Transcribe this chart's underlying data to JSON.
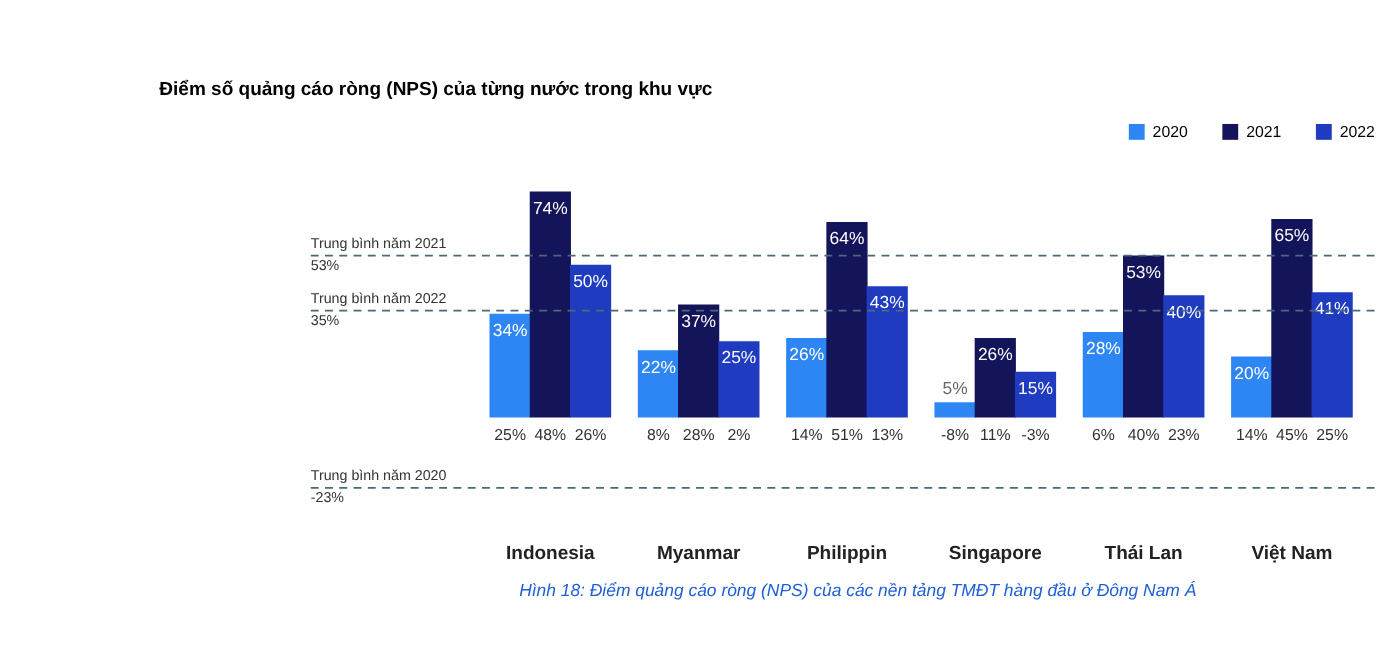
{
  "chart_data": {
    "type": "bar",
    "title": "Điểm số quảng cáo ròng (NPS) của từng nước trong khu vực",
    "categories": [
      "Indonesia",
      "Myanmar",
      "Philippin",
      "Singapore",
      "Thái Lan",
      "Việt Nam"
    ],
    "series": [
      {
        "name": "2020",
        "color": "#2e86f5",
        "values": [
          34,
          22,
          26,
          5,
          28,
          20
        ],
        "value_labels": [
          "34%",
          "22%",
          "26%",
          "5%",
          "28%",
          "20%"
        ]
      },
      {
        "name": "2021",
        "color": "#14145a",
        "values": [
          74,
          37,
          64,
          26,
          53,
          65
        ],
        "value_labels": [
          "74%",
          "37%",
          "64%",
          "26%",
          "53%",
          "65%"
        ]
      },
      {
        "name": "2022",
        "color": "#1f3bc0",
        "values": [
          50,
          25,
          43,
          15,
          40,
          41
        ],
        "value_labels": [
          "50%",
          "25%",
          "43%",
          "15%",
          "40%",
          "41%"
        ]
      }
    ],
    "ref_lines": [
      {
        "axis": "y",
        "value": 53,
        "label": "Trung bình năm 2021\n53%",
        "color": "#4a6a7a",
        "line_style": "dashed"
      },
      {
        "axis": "y",
        "value": 35,
        "label": "Trung bình năm 2022\n35%",
        "color": "#4a6a7a",
        "line_style": "dashed"
      },
      {
        "axis": "y",
        "value": -23,
        "label": "Trung bình năm 2020\n-23%",
        "color": "#4a6a7a",
        "line_style": "dashed"
      }
    ],
    "annotations": [
      "25%",
      "48%",
      "26%",
      "8%",
      "28%",
      "2%",
      "14%",
      "51%",
      "13%",
      "-8%",
      "11%",
      "-3%",
      "6%",
      "40%",
      "23%",
      "14%",
      "45%",
      "25%",
      "Hình 18: Điểm quảng cáo ròng (NPS) của các nền tảng TMĐT hàng đầu ở Đông Nam Á"
    ],
    "legend": "top right",
    "grid": false
  }
}
